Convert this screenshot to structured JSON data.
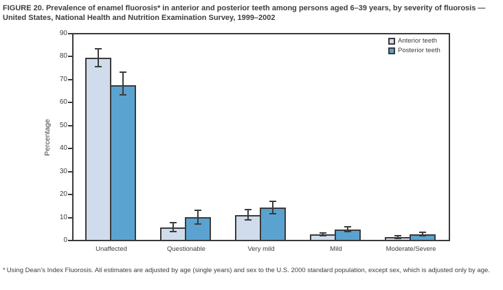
{
  "title": "FIGURE 20. Prevalence of enamel fluorosis* in anterior and posterior teeth among persons aged 6–39 years, by severity of fluorosis — United States, National Health and Nutrition Examination Survey, 1999–2002",
  "footnote": {
    "marker": "*",
    "text": "Using Dean’s Index Fluorosis. All estimates are adjusted by age (single years) and sex to the U.S. 2000 standard population, except sex, which is adjusted only by age."
  },
  "colors": {
    "anterior_fill": "#d0dcec",
    "posterior_fill": "#5aa3d0",
    "axis": "#3a3a3a",
    "text": "#3d3d3d",
    "background": "#ffffff"
  },
  "chart_data": {
    "type": "bar",
    "title": "",
    "xlabel": "",
    "ylabel": "Percentage",
    "ylim": [
      0,
      90
    ],
    "yticks": [
      0,
      10,
      20,
      30,
      40,
      50,
      60,
      70,
      80,
      90
    ],
    "grid": false,
    "error_bars": true,
    "legend_position": "top-right-inside",
    "categories": [
      "Unaffected",
      "Questionable",
      "Very mild",
      "Mild",
      "Moderate/Severe"
    ],
    "series": [
      {
        "name": "Anterior teeth",
        "color": "#d0dcec",
        "values": [
          79.8,
          5.4,
          10.9,
          2.3,
          1.2
        ],
        "ci_low": [
          75.8,
          3.6,
          8.6,
          1.8,
          0.7
        ],
        "ci_high": [
          83.7,
          7.6,
          13.2,
          2.9,
          1.8
        ]
      },
      {
        "name": "Posterior teeth",
        "color": "#5aa3d0",
        "values": [
          67.8,
          9.9,
          14.3,
          4.6,
          2.5
        ],
        "ci_low": [
          63.4,
          6.9,
          11.5,
          3.7,
          1.9
        ],
        "ci_high": [
          73.5,
          13.0,
          17.0,
          5.7,
          3.2
        ]
      }
    ]
  }
}
